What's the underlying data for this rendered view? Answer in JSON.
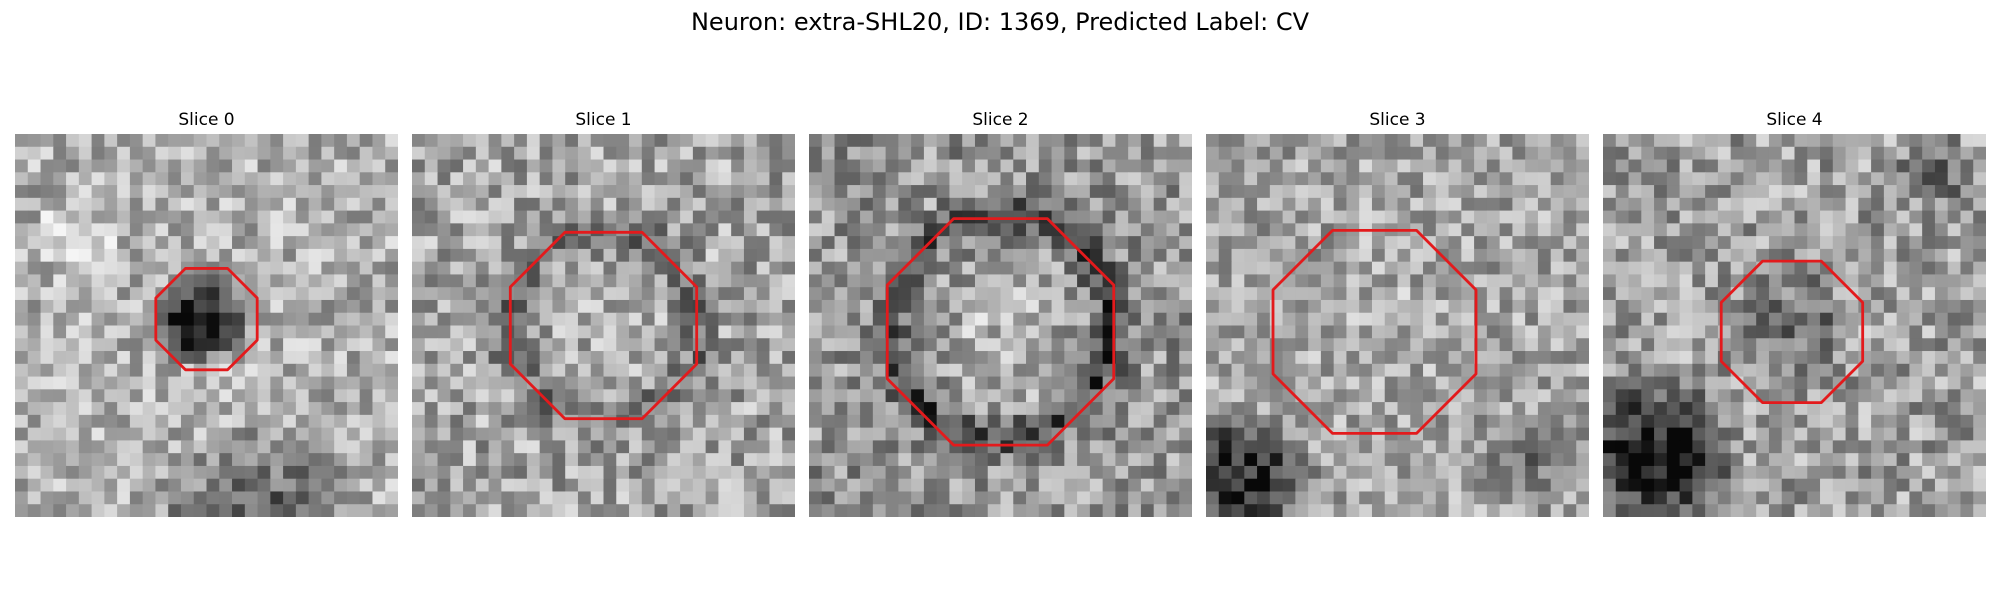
{
  "figure": {
    "title": "Neuron: extra-SHL20, ID: 1369, Predicted Label: CV"
  },
  "contour_color": "#e31a1c",
  "colormap": "gray",
  "slices": [
    {
      "title": "Slice 0"
    },
    {
      "title": "Slice 1"
    },
    {
      "title": "Slice 2"
    },
    {
      "title": "Slice 3"
    },
    {
      "title": "Slice 4"
    }
  ]
}
